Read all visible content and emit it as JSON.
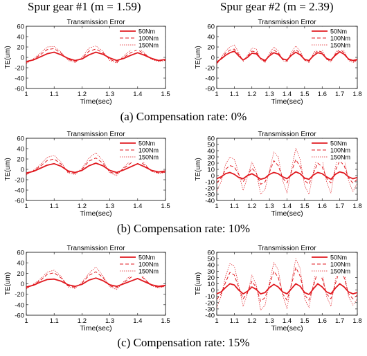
{
  "headers": {
    "gear1": "Spur gear #1 (m = 1.59)",
    "gear2": "Spur gear #2 (m = 2.39)"
  },
  "captions": {
    "row1": "(a) Compensation rate: 0%",
    "row2": "(b) Compensation rate: 10%",
    "row3": "(c) Compensation rate: 15%"
  },
  "colors": {
    "line": "#e0191f",
    "axis": "#000000"
  },
  "chart_data": [
    {
      "type": "line",
      "title": "Transmission Error",
      "xlabel": "Time(sec)",
      "ylabel": "TE(um)",
      "xlim": [
        1,
        1.5
      ],
      "ylim": [
        -60,
        60
      ],
      "xticks": [
        "1",
        "1.1",
        "1.2",
        "1.3",
        "1.4",
        "1.5"
      ],
      "yticks": [
        "-60",
        "-40",
        "-20",
        "0",
        "20",
        "40",
        "60"
      ],
      "legend": "top-right",
      "x": [
        1.0,
        1.025,
        1.05,
        1.075,
        1.1,
        1.125,
        1.15,
        1.175,
        1.2,
        1.225,
        1.25,
        1.275,
        1.3,
        1.325,
        1.35,
        1.375,
        1.4,
        1.425,
        1.45,
        1.475,
        1.5
      ],
      "series": [
        {
          "name": "50Nm",
          "values": [
            -8,
            -5,
            1,
            7,
            10,
            5,
            -2,
            -6,
            -3,
            5,
            10,
            6,
            -1,
            -6,
            -2,
            4,
            9,
            4,
            -2,
            -6,
            -4
          ]
        },
        {
          "name": "100Nm",
          "values": [
            -10,
            -4,
            5,
            15,
            17,
            8,
            -4,
            -8,
            -2,
            12,
            16,
            9,
            -4,
            -9,
            0,
            9,
            15,
            6,
            -3,
            -7,
            -5
          ]
        },
        {
          "name": "150Nm",
          "values": [
            -12,
            -3,
            8,
            20,
            21,
            10,
            -6,
            -10,
            0,
            18,
            22,
            12,
            -6,
            -11,
            3,
            14,
            20,
            8,
            -4,
            -8,
            -6
          ]
        }
      ]
    },
    {
      "type": "line",
      "title": "Transmission Error",
      "xlabel": "Time(sec)",
      "ylabel": "TE(um)",
      "xlim": [
        1,
        1.8
      ],
      "ylim": [
        -60,
        60
      ],
      "xticks": [
        "1",
        "1.1",
        "1.2",
        "1.3",
        "1.4",
        "1.5",
        "1.6",
        "1.7",
        "1.8"
      ],
      "yticks": [
        "-60",
        "-40",
        "-20",
        "0",
        "20",
        "40",
        "60"
      ],
      "legend": "top-right",
      "x": [
        1.0,
        1.025,
        1.05,
        1.075,
        1.1,
        1.125,
        1.15,
        1.175,
        1.2,
        1.225,
        1.25,
        1.275,
        1.3,
        1.325,
        1.35,
        1.375,
        1.4,
        1.425,
        1.45,
        1.475,
        1.5,
        1.525,
        1.55,
        1.575,
        1.6,
        1.625,
        1.65,
        1.675,
        1.7,
        1.725,
        1.75,
        1.775,
        1.8
      ],
      "series": [
        {
          "name": "50Nm",
          "values": [
            -9,
            -3,
            4,
            9,
            12,
            3,
            -5,
            0,
            8,
            7,
            -2,
            -6,
            3,
            9,
            6,
            -3,
            -5,
            4,
            10,
            5,
            -4,
            -6,
            3,
            9,
            7,
            -2,
            -5,
            4,
            11,
            6,
            -3,
            -6,
            -4
          ]
        },
        {
          "name": "100Nm",
          "values": [
            -12,
            -2,
            8,
            14,
            16,
            6,
            -6,
            2,
            12,
            11,
            -3,
            -8,
            5,
            14,
            9,
            -4,
            -7,
            7,
            15,
            8,
            -5,
            -8,
            5,
            13,
            10,
            -3,
            -7,
            6,
            16,
            9,
            -4,
            -8,
            -5
          ]
        },
        {
          "name": "150Nm",
          "values": [
            -14,
            0,
            12,
            20,
            24,
            10,
            -8,
            4,
            18,
            16,
            -4,
            -10,
            8,
            20,
            13,
            -6,
            -9,
            10,
            22,
            12,
            -6,
            -10,
            8,
            18,
            15,
            -4,
            -9,
            9,
            22,
            13,
            -6,
            -10,
            -7
          ]
        }
      ]
    },
    {
      "type": "line",
      "title": "Transmission Error",
      "xlabel": "Time(sec)",
      "ylabel": "TE(um)",
      "xlim": [
        1,
        1.5
      ],
      "ylim": [
        -60,
        60
      ],
      "xticks": [
        "1",
        "1.1",
        "1.2",
        "1.3",
        "1.4",
        "1.5"
      ],
      "yticks": [
        "-60",
        "-40",
        "-20",
        "0",
        "20",
        "40",
        "60"
      ],
      "legend": "top-right",
      "x": [
        1.0,
        1.025,
        1.05,
        1.075,
        1.1,
        1.125,
        1.15,
        1.175,
        1.2,
        1.225,
        1.25,
        1.275,
        1.3,
        1.325,
        1.35,
        1.375,
        1.4,
        1.425,
        1.45,
        1.475,
        1.5
      ],
      "series": [
        {
          "name": "50Nm",
          "values": [
            -7,
            -4,
            2,
            8,
            11,
            6,
            -3,
            -6,
            -2,
            7,
            12,
            7,
            -2,
            -6,
            -1,
            5,
            11,
            5,
            -2,
            -5,
            -3
          ]
        },
        {
          "name": "100Nm",
          "values": [
            -9,
            -3,
            6,
            17,
            20,
            10,
            -5,
            -8,
            0,
            16,
            22,
            12,
            -5,
            -9,
            2,
            12,
            20,
            8,
            -3,
            -7,
            -5
          ]
        },
        {
          "name": "150Nm",
          "values": [
            -11,
            -2,
            9,
            23,
            27,
            14,
            -7,
            -10,
            2,
            22,
            32,
            17,
            -7,
            -12,
            4,
            17,
            28,
            11,
            -4,
            -8,
            -6
          ]
        }
      ]
    },
    {
      "type": "line",
      "title": "Transmission Error",
      "xlabel": "Time(sec)",
      "ylabel": "TE(um)",
      "xlim": [
        1,
        1.8
      ],
      "ylim": [
        -40,
        60
      ],
      "xticks": [
        "1",
        "1.1",
        "1.2",
        "1.3",
        "1.4",
        "1.5",
        "1.6",
        "1.7",
        "1.8"
      ],
      "yticks": [
        "-40",
        "-30",
        "-20",
        "-10",
        "0",
        "10",
        "20",
        "30",
        "40",
        "50",
        "60"
      ],
      "legend": "top-right",
      "x": [
        1.0,
        1.025,
        1.05,
        1.075,
        1.1,
        1.125,
        1.15,
        1.175,
        1.2,
        1.225,
        1.25,
        1.275,
        1.3,
        1.325,
        1.35,
        1.375,
        1.4,
        1.425,
        1.45,
        1.475,
        1.5,
        1.525,
        1.55,
        1.575,
        1.6,
        1.625,
        1.65,
        1.675,
        1.7,
        1.725,
        1.75,
        1.775,
        1.8
      ],
      "series": [
        {
          "name": "50Nm",
          "values": [
            -5,
            -2,
            3,
            5,
            2,
            -3,
            -5,
            0,
            3,
            -1,
            -6,
            -4,
            2,
            5,
            3,
            -2,
            -5,
            1,
            6,
            3,
            -4,
            -6,
            1,
            5,
            3,
            -2,
            -6,
            2,
            6,
            4,
            -2,
            -5,
            -3
          ]
        },
        {
          "name": "100Nm",
          "values": [
            -12,
            -4,
            10,
            16,
            14,
            2,
            -10,
            0,
            12,
            4,
            -14,
            -10,
            5,
            24,
            16,
            -4,
            -12,
            6,
            26,
            14,
            -8,
            -14,
            4,
            20,
            14,
            -4,
            -12,
            8,
            24,
            16,
            -4,
            -12,
            -6
          ]
        },
        {
          "name": "150Nm",
          "values": [
            -25,
            -10,
            18,
            30,
            26,
            4,
            -24,
            -2,
            22,
            6,
            -30,
            -22,
            8,
            38,
            30,
            -8,
            -28,
            10,
            44,
            26,
            -16,
            -30,
            6,
            34,
            26,
            -10,
            -28,
            14,
            40,
            28,
            -8,
            -26,
            -12
          ]
        }
      ]
    },
    {
      "type": "line",
      "title": "Transmission Error",
      "xlabel": "Time(sec)",
      "ylabel": "TE(um)",
      "xlim": [
        1,
        1.5
      ],
      "ylim": [
        -60,
        60
      ],
      "xticks": [
        "1",
        "1.1",
        "1.2",
        "1.3",
        "1.4",
        "1.5"
      ],
      "yticks": [
        "-60",
        "-40",
        "-20",
        "0",
        "20",
        "40",
        "60"
      ],
      "legend": "top-right",
      "x": [
        1.0,
        1.025,
        1.05,
        1.075,
        1.1,
        1.125,
        1.15,
        1.175,
        1.2,
        1.225,
        1.25,
        1.275,
        1.3,
        1.325,
        1.35,
        1.375,
        1.4,
        1.425,
        1.45,
        1.475,
        1.5
      ],
      "series": [
        {
          "name": "50Nm",
          "values": [
            -6,
            -3,
            3,
            8,
            9,
            5,
            -2,
            -5,
            -1,
            7,
            11,
            6,
            -2,
            -5,
            0,
            5,
            10,
            4,
            -2,
            -5,
            -3
          ]
        },
        {
          "name": "100Nm",
          "values": [
            -8,
            -2,
            6,
            18,
            21,
            11,
            -4,
            -7,
            1,
            16,
            23,
            12,
            -4,
            -8,
            2,
            12,
            21,
            8,
            -3,
            -7,
            -4
          ]
        },
        {
          "name": "150Nm",
          "values": [
            -10,
            -1,
            9,
            22,
            26,
            14,
            -6,
            -9,
            3,
            20,
            32,
            15,
            -6,
            -11,
            4,
            16,
            26,
            10,
            -4,
            -8,
            -5
          ]
        }
      ]
    },
    {
      "type": "line",
      "title": "Transmission Error",
      "xlabel": "Time(sec)",
      "ylabel": "TE(um)",
      "xlim": [
        1,
        1.8
      ],
      "ylim": [
        -40,
        60
      ],
      "xticks": [
        "1",
        "1.1",
        "1.2",
        "1.3",
        "1.4",
        "1.5",
        "1.6",
        "1.7",
        "1.8"
      ],
      "yticks": [
        "-40",
        "-30",
        "-20",
        "-10",
        "0",
        "10",
        "20",
        "30",
        "40",
        "50",
        "60"
      ],
      "legend": "top-right",
      "x": [
        1.0,
        1.025,
        1.05,
        1.075,
        1.1,
        1.125,
        1.15,
        1.175,
        1.2,
        1.225,
        1.25,
        1.275,
        1.3,
        1.325,
        1.35,
        1.375,
        1.4,
        1.425,
        1.45,
        1.475,
        1.5,
        1.525,
        1.55,
        1.575,
        1.6,
        1.625,
        1.65,
        1.675,
        1.7,
        1.725,
        1.75,
        1.775,
        1.8
      ],
      "series": [
        {
          "name": "50Nm",
          "values": [
            -6,
            -3,
            4,
            10,
            8,
            0,
            -6,
            -2,
            5,
            1,
            -6,
            -4,
            4,
            9,
            5,
            -3,
            -6,
            2,
            10,
            6,
            -4,
            -7,
            2,
            10,
            5,
            -3,
            -6,
            3,
            10,
            5,
            -3,
            -6,
            -4
          ]
        },
        {
          "name": "100Nm",
          "values": [
            -15,
            -6,
            12,
            28,
            24,
            4,
            -14,
            -4,
            14,
            4,
            -18,
            -12,
            8,
            30,
            20,
            -6,
            -16,
            8,
            36,
            22,
            -8,
            -16,
            6,
            30,
            18,
            -6,
            -14,
            10,
            32,
            20,
            -6,
            -14,
            -8
          ]
        },
        {
          "name": "150Nm",
          "values": [
            -28,
            -10,
            22,
            42,
            38,
            8,
            -26,
            -6,
            24,
            8,
            -32,
            -24,
            12,
            44,
            32,
            -8,
            -30,
            12,
            50,
            34,
            -14,
            -28,
            10,
            44,
            28,
            -10,
            -26,
            16,
            46,
            30,
            -10,
            -24,
            -14
          ]
        }
      ]
    }
  ]
}
